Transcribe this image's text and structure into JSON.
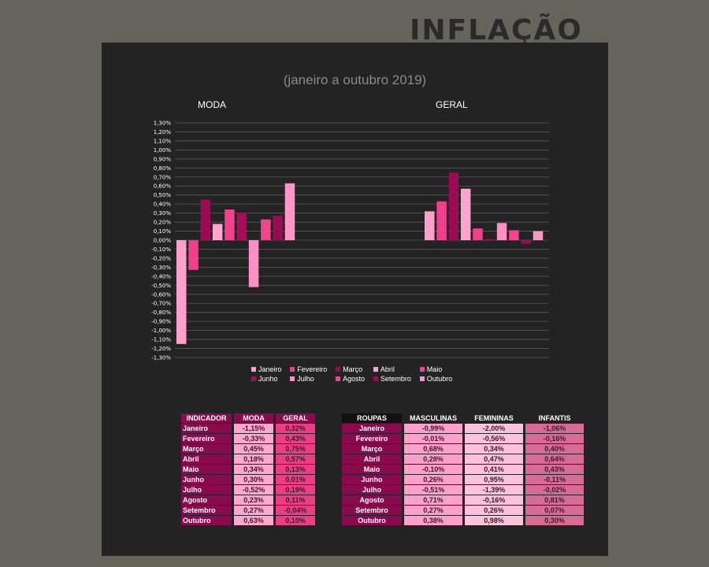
{
  "header": {
    "title": "INFLAÇÃO",
    "subtitle": "(janeiro a outubro 2019)"
  },
  "chart_data": {
    "type": "bar",
    "panels": [
      "MODA",
      "GERAL"
    ],
    "series": [
      {
        "name": "Janeiro",
        "color": "#ff9fcb",
        "values": [
          -1.15,
          0.32
        ]
      },
      {
        "name": "Fevereiro",
        "color": "#f23f8c",
        "values": [
          -0.33,
          0.43
        ]
      },
      {
        "name": "Março",
        "color": "#9c0a55",
        "values": [
          0.45,
          0.75
        ]
      },
      {
        "name": "Abril",
        "color": "#ffa4cf",
        "values": [
          0.18,
          0.57
        ]
      },
      {
        "name": "Maio",
        "color": "#f2408e",
        "values": [
          0.34,
          0.13
        ]
      },
      {
        "name": "Junho",
        "color": "#a50d5b",
        "values": [
          0.3,
          0.01
        ]
      },
      {
        "name": "Julho",
        "color": "#ff8fc4",
        "values": [
          -0.52,
          0.19
        ]
      },
      {
        "name": "Agosto",
        "color": "#f0468e",
        "values": [
          0.23,
          0.11
        ]
      },
      {
        "name": "Setembro",
        "color": "#9a0c52",
        "values": [
          0.27,
          -0.04
        ]
      },
      {
        "name": "Outubro",
        "color": "#ff94c6",
        "values": [
          0.63,
          0.1
        ]
      }
    ],
    "ylim": [
      -1.3,
      1.3
    ],
    "ytick_step": 0.1,
    "ytick_format": "percent_2dp_comma",
    "grid": true,
    "legend": "bottom"
  },
  "table_indicador": {
    "headers": [
      "INDICADOR",
      "MODA",
      "GERAL"
    ],
    "rows": [
      [
        "Janeiro",
        "-1,15%",
        "0,32%"
      ],
      [
        "Fevereiro",
        "-0,33%",
        "0,43%"
      ],
      [
        "Março",
        "0,45%",
        "0,75%"
      ],
      [
        "Abril",
        "0,18%",
        "0,57%"
      ],
      [
        "Maio",
        "0,34%",
        "0,13%"
      ],
      [
        "Junho",
        "0,30%",
        "0,01%"
      ],
      [
        "Julho",
        "-0,52%",
        "0,19%"
      ],
      [
        "Agosto",
        "0,23%",
        "0,11%"
      ],
      [
        "Setembro",
        "0,27%",
        "-0,04%"
      ],
      [
        "Outubro",
        "0,63%",
        "0,10%"
      ]
    ]
  },
  "table_roupas": {
    "headers": [
      "ROUPAS",
      "MASCULINAS",
      "FEMININAS",
      "INFANTIS"
    ],
    "rows": [
      [
        "Janeiro",
        "-0,99%",
        "-2,00%",
        "-1,06%"
      ],
      [
        "Fevereiro",
        "-0,01%",
        "-0,56%",
        "-0,16%"
      ],
      [
        "Março",
        "0,68%",
        "0,34%",
        "0,40%"
      ],
      [
        "Abril",
        "0,28%",
        "0,47%",
        "0,64%"
      ],
      [
        "Maio",
        "-0,10%",
        "0,41%",
        "0,43%"
      ],
      [
        "Junho",
        "0,26%",
        "0,95%",
        "-0,11%"
      ],
      [
        "Julho",
        "-0,51%",
        "-1,39%",
        "-0,02%"
      ],
      [
        "Agosto",
        "0,71%",
        "-0,16%",
        "0,81%"
      ],
      [
        "Setembro",
        "0,27%",
        "0,26%",
        "0,07%"
      ],
      [
        "Outubro",
        "0,38%",
        "0,98%",
        "0,30%"
      ]
    ]
  }
}
